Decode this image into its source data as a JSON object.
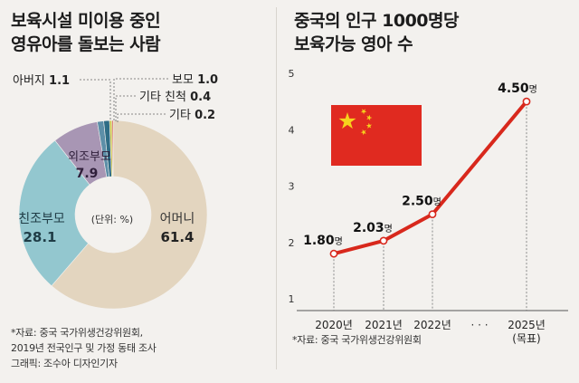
{
  "left": {
    "title_lines": [
      "보육시설 미이용 중인",
      "영유아를 돌보는 사람"
    ],
    "source_lines": [
      "*자료: 중국 국가위생건강위원회,",
      "2019년 전국인구 및 가정 동태 조사",
      "그래픽: 조수아 디자인기자"
    ]
  },
  "right": {
    "title_lines": [
      "중국의 인구 1000명당",
      "보육가능 영아 수"
    ],
    "source": "*자료: 중국 국가위생건강위원회",
    "x_ellipsis": "· · ·",
    "x_target_note": "(목표)"
  },
  "colors": {
    "mother": "#e3d5bf",
    "maternal_grandparents": "#93c7cf",
    "paternal_grandparents": "#a896b4",
    "father": "#5d8fa8",
    "nanny": "#2f6d86",
    "other_relatives": "#c9c23f",
    "other": "#d34b44",
    "line": "#d8281c",
    "flag_red": "#e02a20",
    "flag_star": "#f6d21d"
  },
  "chart_data": [
    {
      "type": "pie",
      "unit_label": "(단위: %)",
      "slices": [
        {
          "label": "어머니",
          "value": 61.4,
          "value_text": "61.4",
          "color_key": "mother"
        },
        {
          "label": "친조부모",
          "value": 28.1,
          "value_text": "28.1",
          "color_key": "maternal_grandparents"
        },
        {
          "label": "외조부모",
          "value": 7.9,
          "value_text": "7.9",
          "color_key": "paternal_grandparents"
        },
        {
          "label": "아버지",
          "value": 1.1,
          "value_text": "1.1",
          "color_key": "father"
        },
        {
          "label": "보모",
          "value": 1.0,
          "value_text": "1.0",
          "color_key": "nanny"
        },
        {
          "label": "기타 친척",
          "value": 0.4,
          "value_text": "0.4",
          "color_key": "other_relatives"
        },
        {
          "label": "기타",
          "value": 0.2,
          "value_text": "0.2",
          "color_key": "other"
        }
      ]
    },
    {
      "type": "line",
      "categories": [
        "2020년",
        "2021년",
        "2022년",
        "2025년"
      ],
      "values": [
        1.8,
        2.03,
        2.5,
        4.5
      ],
      "value_labels": [
        "1.80",
        "2.03",
        "2.50",
        "4.50"
      ],
      "value_unit": "명",
      "yticks": [
        1,
        2,
        3,
        4,
        5
      ],
      "ylim": [
        1,
        5
      ]
    }
  ]
}
